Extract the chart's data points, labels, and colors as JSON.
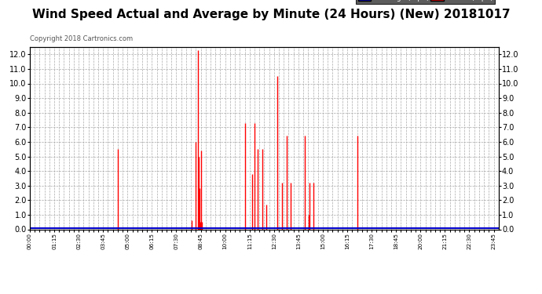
{
  "title": "Wind Speed Actual and Average by Minute (24 Hours) (New) 20181017",
  "copyright": "Copyright 2018 Cartronics.com",
  "ylim": [
    0.0,
    12.5
  ],
  "ytick_max": 12.0,
  "ytick_step": 1.0,
  "bg_color": "#ffffff",
  "grid_color": "#aaaaaa",
  "wind_color": "#ff0000",
  "avg_color": "#0000cc",
  "legend_bg": "#333399",
  "legend_wind_bg": "#cc0000",
  "title_fontsize": 11,
  "copyright_fontsize": 6,
  "wind_spikes": [
    {
      "minute": 270,
      "value": 5.5
    },
    {
      "minute": 497,
      "value": 0.6
    },
    {
      "minute": 510,
      "value": 6.0
    },
    {
      "minute": 516,
      "value": 12.3
    },
    {
      "minute": 519,
      "value": 5.0
    },
    {
      "minute": 521,
      "value": 2.8
    },
    {
      "minute": 523,
      "value": 0.5
    },
    {
      "minute": 525,
      "value": 5.4
    },
    {
      "minute": 528,
      "value": 0.5
    },
    {
      "minute": 661,
      "value": 7.3
    },
    {
      "minute": 682,
      "value": 3.8
    },
    {
      "minute": 690,
      "value": 7.3
    },
    {
      "minute": 701,
      "value": 5.5
    },
    {
      "minute": 714,
      "value": 5.5
    },
    {
      "minute": 726,
      "value": 1.7
    },
    {
      "minute": 760,
      "value": 10.5
    },
    {
      "minute": 775,
      "value": 3.2
    },
    {
      "minute": 790,
      "value": 6.4
    },
    {
      "minute": 800,
      "value": 3.2
    },
    {
      "minute": 845,
      "value": 6.4
    },
    {
      "minute": 856,
      "value": 1.0
    },
    {
      "minute": 858,
      "value": 3.2
    },
    {
      "minute": 870,
      "value": 3.2
    },
    {
      "minute": 1005,
      "value": 6.4
    }
  ],
  "avg_value": 0.1,
  "total_minutes": 1440,
  "xtick_every_n_minutes": 15,
  "xlabel_every_nth_tick": 5
}
